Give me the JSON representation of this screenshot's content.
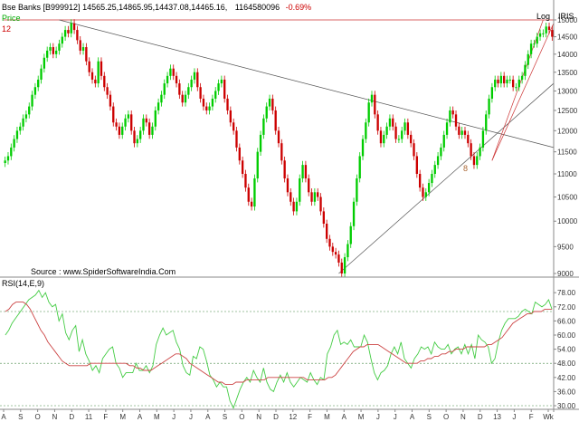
{
  "header": {
    "symbol": "Bse Banks [B999912]",
    "ohlc": "14565.25,14865.95,14437.08,14465.16,",
    "volume": "1164580096",
    "change": "-0.69%",
    "scale_label": "Log",
    "logo": "IRIS",
    "panel_label": "Price",
    "interval_label": "12",
    "source": "Source : www.SpiderSoftwareIndia.Com",
    "annotation": "8"
  },
  "colors": {
    "up": "#00cc00",
    "down": "#cc0000",
    "rsi": "#44cc44",
    "signal": "#cc4444",
    "trendline": "#555555",
    "channel": "#cc3333",
    "level": "#cc3333"
  },
  "chart_data": [
    {
      "type": "candlestick",
      "ylim": [
        9000,
        15000
      ],
      "log_scale": true,
      "y_ticks": [
        9000,
        9500,
        10000,
        10500,
        11000,
        11500,
        12000,
        12500,
        13000,
        13500,
        14000,
        14500,
        15000
      ],
      "x_ticks": [
        "A",
        "S",
        "O",
        "N",
        "D",
        "11",
        "F",
        "M",
        "A",
        "M",
        "J",
        "J",
        "A",
        "S",
        "O",
        "N",
        "D",
        "12",
        "F",
        "M",
        "A",
        "M",
        "J",
        "J",
        "A",
        "S",
        "O",
        "N",
        "D",
        "13",
        "J",
        "F",
        "Wk"
      ],
      "horizontal_level": 15000,
      "closes": [
        11300,
        11400,
        11600,
        11800,
        12000,
        12100,
        12300,
        12400,
        12600,
        12900,
        13100,
        13300,
        13600,
        13900,
        14100,
        14200,
        14000,
        14100,
        14300,
        14500,
        14700,
        14600,
        14900,
        14700,
        14400,
        14100,
        14200,
        13800,
        13500,
        13300,
        13200,
        13800,
        13400,
        13100,
        12900,
        12600,
        12200,
        12100,
        11900,
        12100,
        12300,
        12400,
        12000,
        11700,
        11800,
        12000,
        12300,
        12200,
        11900,
        12100,
        12500,
        12700,
        12900,
        13200,
        13400,
        13600,
        13400,
        13200,
        12900,
        12700,
        12900,
        13100,
        13300,
        13500,
        13100,
        12800,
        12600,
        12500,
        12600,
        12800,
        13000,
        13200,
        13300,
        12800,
        12500,
        12200,
        12000,
        11600,
        11300,
        11000,
        10700,
        10400,
        10300,
        10900,
        11500,
        11900,
        12300,
        12600,
        12800,
        12500,
        12000,
        11700,
        11300,
        10900,
        10600,
        10400,
        10200,
        10400,
        10900,
        11200,
        10900,
        10600,
        10400,
        10600,
        10500,
        10200,
        9950,
        9650,
        9500,
        9400,
        9350,
        9200,
        9000,
        9300,
        9550,
        9900,
        10400,
        10900,
        11400,
        11800,
        12200,
        12700,
        12900,
        12400,
        12000,
        11700,
        11900,
        12100,
        12300,
        12100,
        11800,
        11800,
        12000,
        12200,
        11900,
        11700,
        11400,
        11000,
        10700,
        10500,
        10600,
        10800,
        11000,
        11200,
        11400,
        11600,
        11900,
        12200,
        12500,
        12400,
        12100,
        11900,
        12000,
        11900,
        11700,
        11400,
        11200,
        11400,
        11600,
        12000,
        12400,
        12800,
        13100,
        13300,
        13200,
        13400,
        13200,
        13300,
        13300,
        13100,
        13100,
        13300,
        13400,
        13700,
        14000,
        14300,
        14300,
        14500,
        14600,
        14600,
        14800,
        14700,
        14500
      ],
      "rsi_panel": {
        "title": "RSI(14,E,9)",
        "ylim": [
          30,
          80
        ],
        "y_ticks": [
          30,
          36,
          42,
          48,
          54,
          60,
          66,
          72,
          78
        ],
        "levels": [
          30,
          48,
          70
        ],
        "rsi": [
          60,
          62,
          65,
          67,
          69,
          71,
          73,
          75,
          76,
          77,
          79,
          76,
          78,
          74,
          72,
          73,
          66,
          69,
          61,
          58,
          62,
          64,
          53,
          58,
          52,
          49,
          45,
          47,
          44,
          50,
          52,
          54,
          55,
          48,
          46,
          42,
          44,
          44,
          44,
          48,
          45,
          45,
          47,
          44,
          47,
          56,
          60,
          63,
          60,
          61,
          62,
          57,
          54,
          47,
          44,
          43,
          51,
          50,
          55,
          54,
          49,
          43,
          41,
          38,
          40,
          38,
          38,
          32,
          29,
          33,
          37,
          40,
          42,
          40,
          45,
          42,
          40,
          46,
          40,
          37,
          36,
          40,
          43,
          40,
          44,
          40,
          38,
          40,
          42,
          41,
          40,
          44,
          41,
          39,
          42,
          41,
          52,
          55,
          60,
          62,
          56,
          57,
          56,
          58,
          55,
          55,
          55,
          60,
          57,
          50,
          44,
          41,
          44,
          45,
          47,
          52,
          55,
          52,
          57,
          50,
          48,
          46,
          50,
          52,
          55,
          54,
          55,
          52,
          57,
          55,
          54,
          54,
          56,
          52,
          54,
          55,
          52,
          56,
          52,
          56,
          50,
          60,
          58,
          57,
          55,
          48,
          50,
          57,
          62,
          65,
          67,
          67,
          67,
          68,
          70,
          71,
          70,
          69,
          74,
          73,
          72,
          73,
          75,
          71
        ],
        "signal": [
          70,
          71,
          73,
          74,
          74,
          74,
          73,
          71,
          68,
          65,
          62,
          60,
          57,
          55,
          53,
          51,
          49,
          48,
          47,
          47,
          47,
          47,
          47,
          47,
          48,
          48,
          48,
          48,
          48,
          48,
          48,
          48,
          48,
          48,
          48,
          47,
          47,
          46,
          46,
          45,
          45,
          45,
          46,
          47,
          48,
          49,
          50,
          51,
          52,
          52,
          51,
          50,
          48,
          47,
          46,
          45,
          44,
          43,
          42,
          41,
          40,
          40,
          39,
          39,
          39,
          40,
          40,
          40,
          41,
          41,
          41,
          41,
          41,
          41,
          42,
          42,
          42,
          42,
          42,
          42,
          42,
          42,
          42,
          42,
          42,
          41,
          41,
          41,
          41,
          41,
          41,
          42,
          42,
          43,
          45,
          47,
          49,
          51,
          53,
          54,
          55,
          55,
          56,
          56,
          56,
          56,
          55,
          54,
          53,
          52,
          51,
          50,
          49,
          48,
          48,
          48,
          48,
          49,
          49,
          50,
          50,
          51,
          51,
          52,
          52,
          53,
          53,
          54,
          54,
          54,
          55,
          55,
          55,
          55,
          55,
          55,
          56,
          56,
          57,
          58,
          59,
          61,
          63,
          65,
          66,
          67,
          68,
          69,
          69,
          70,
          70,
          70,
          71,
          71,
          71
        ]
      }
    }
  ]
}
